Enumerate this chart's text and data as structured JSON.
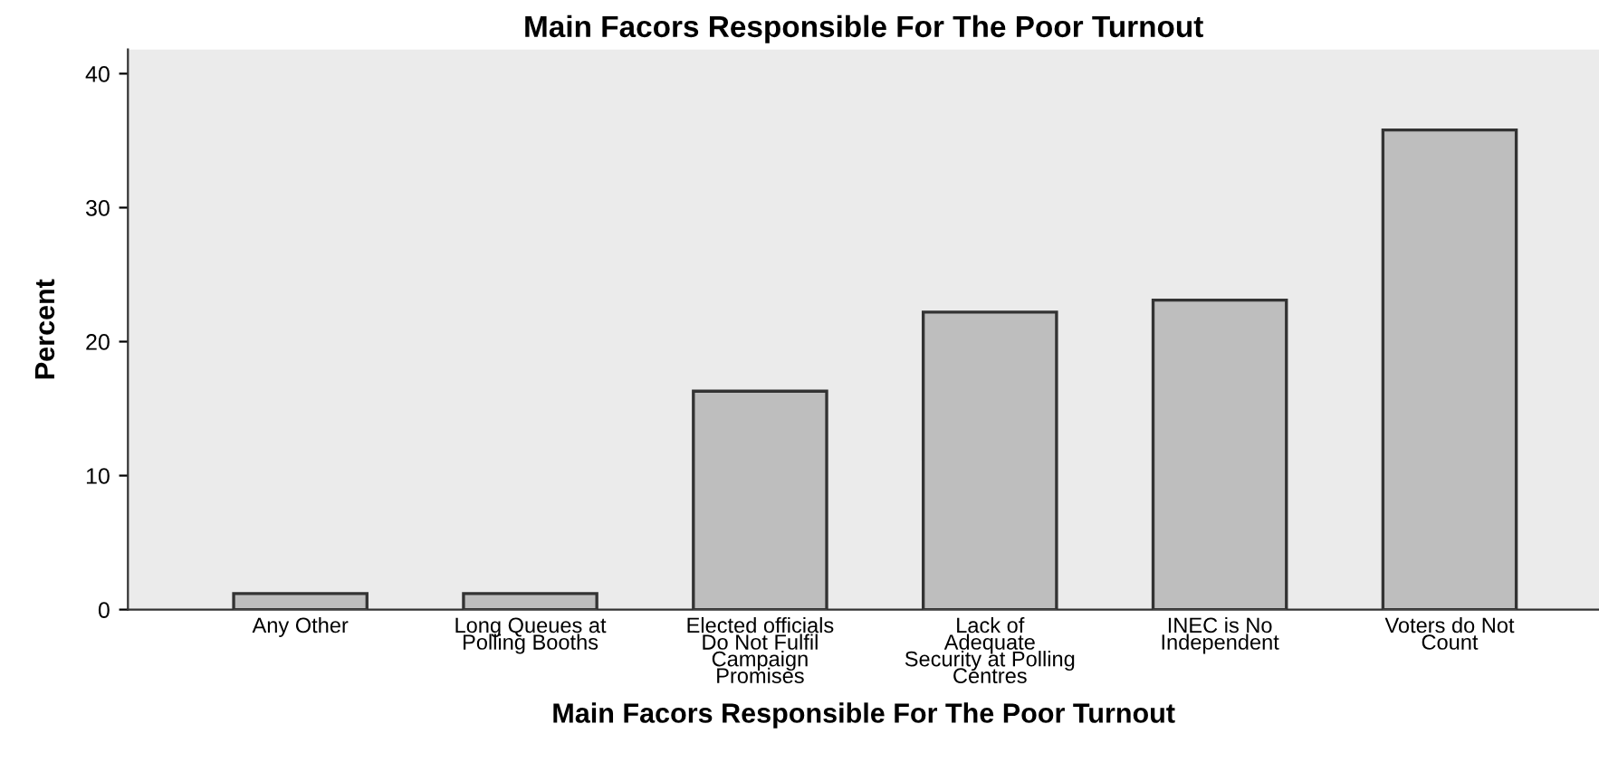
{
  "chart_data": {
    "type": "bar",
    "title": "Main Facors Responsible For The Poor Turnout",
    "xlabel": "Main Facors Responsible For The Poor Turnout",
    "ylabel": "Percent",
    "categories": [
      "Any Other",
      "Long Queues at\nPolling Booths",
      "Elected officials\nDo Not Fulfil\nCampaign\nPromises",
      "Lack of\nAdequate\nSecurity at Polling\nCentres",
      "INEC is No\nIndependent",
      "Voters do Not\nCount"
    ],
    "values": [
      1.2,
      1.2,
      16.3,
      22.2,
      23.1,
      35.8
    ],
    "color": "#bebebe",
    "ylim": [
      0,
      41.8
    ],
    "yticks": [
      0,
      10,
      20,
      30,
      40
    ],
    "grid": false
  }
}
